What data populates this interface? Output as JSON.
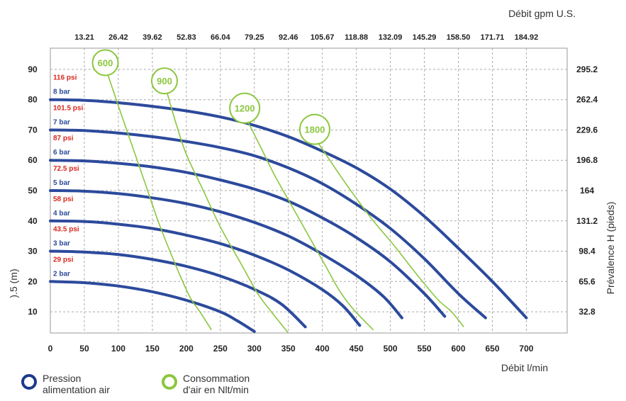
{
  "chart_data": {
    "type": "line",
    "top_axis_title": "Débit gpm U.S.",
    "x_label": "Débit l/min",
    "y_left_label": ").5 (m)",
    "y_right_label": "Prévalence H (pieds)",
    "x_ticks": [
      "0",
      "50",
      "100",
      "150",
      "200",
      "250",
      "300",
      "350",
      "400",
      "450",
      "500",
      "550",
      "600",
      "650",
      "700"
    ],
    "x_top_ticks": [
      "13.21",
      "26.42",
      "39.62",
      "52.83",
      "66.04",
      "79.25",
      "92.46",
      "105.67",
      "118.88",
      "132.09",
      "145.29",
      "158.50",
      "171.71",
      "184.92"
    ],
    "y_left_ticks": [
      "10",
      "20",
      "30",
      "40",
      "50",
      "60",
      "70",
      "80",
      "90"
    ],
    "y_right_ticks": [
      "32.8",
      "65.6",
      "98.4",
      "131.2",
      "164",
      "196.8",
      "229.6",
      "262.4",
      "295.2"
    ],
    "xlim": [
      0,
      760
    ],
    "ylim": [
      3,
      97
    ],
    "grid": true,
    "series": [
      {
        "name": "8 bar",
        "psi": "116 psi",
        "x": [
          0,
          50,
          100,
          150,
          200,
          250,
          300,
          350,
          400,
          450,
          500,
          550,
          600,
          650,
          700
        ],
        "y": [
          80,
          79.8,
          79,
          77.8,
          76.3,
          74.3,
          71.5,
          67.8,
          63,
          57.5,
          50.5,
          41.5,
          31,
          20,
          8
        ]
      },
      {
        "name": "7 bar",
        "psi": "101.5 psi",
        "x": [
          0,
          50,
          100,
          150,
          200,
          250,
          300,
          350,
          400,
          450,
          500,
          550,
          600,
          640
        ],
        "y": [
          70,
          69.8,
          69,
          67.8,
          66.2,
          64.2,
          61.5,
          57.5,
          52.3,
          45.5,
          37.5,
          27.5,
          16,
          8
        ]
      },
      {
        "name": "6 bar",
        "psi": "87 psi",
        "x": [
          0,
          50,
          100,
          150,
          200,
          250,
          300,
          350,
          400,
          450,
          500,
          550,
          580
        ],
        "y": [
          60,
          59.8,
          59,
          57.8,
          56,
          53.5,
          50.5,
          46.5,
          41,
          34.5,
          26.5,
          16,
          8.5
        ]
      },
      {
        "name": "5 bar",
        "psi": "72.5 psi",
        "x": [
          0,
          50,
          100,
          150,
          200,
          250,
          300,
          350,
          400,
          450,
          490,
          517
        ],
        "y": [
          50,
          49.8,
          49,
          47.6,
          45.7,
          43,
          39.5,
          35,
          29,
          22,
          15,
          8
        ]
      },
      {
        "name": "4 bar",
        "psi": "58 psi",
        "x": [
          0,
          50,
          100,
          150,
          200,
          250,
          300,
          350,
          400,
          430,
          455
        ],
        "y": [
          40,
          39.8,
          38.9,
          37.5,
          35.3,
          32.5,
          28.7,
          23.8,
          17.3,
          12,
          5.5
        ]
      },
      {
        "name": "3 bar",
        "psi": "43.5 psi",
        "x": [
          0,
          50,
          100,
          150,
          200,
          250,
          300,
          340,
          375
        ],
        "y": [
          30,
          29.7,
          28.9,
          27.3,
          25,
          21.8,
          17.4,
          12.5,
          5
        ]
      },
      {
        "name": "2 bar",
        "psi": "29 psi",
        "x": [
          0,
          50,
          100,
          150,
          200,
          250,
          275,
          300
        ],
        "y": [
          20,
          19.6,
          18.5,
          16.6,
          13.8,
          10,
          7,
          3.5
        ]
      }
    ],
    "air_consumption": [
      {
        "label": "600",
        "x": [
          85,
          100,
          120,
          140,
          160,
          185,
          205,
          220,
          237
        ],
        "y": [
          88,
          78,
          65,
          52,
          39,
          25,
          15,
          10,
          4
        ]
      },
      {
        "label": "900",
        "x": [
          172,
          185,
          200,
          225,
          250,
          280,
          305,
          325,
          350
        ],
        "y": [
          82,
          72,
          62,
          50,
          38,
          26,
          16,
          10,
          3
        ]
      },
      {
        "label": "1200",
        "x": [
          290,
          310,
          330,
          355,
          380,
          405,
          425,
          445,
          475
        ],
        "y": [
          73,
          64,
          55,
          45,
          35,
          25,
          17,
          11,
          4
        ]
      },
      {
        "label": "1800",
        "x": [
          393,
          420,
          445,
          475,
          505,
          540,
          570,
          590,
          608
        ],
        "y": [
          66,
          57,
          49,
          40,
          32,
          22,
          14,
          10,
          5
        ]
      }
    ],
    "legend": [
      {
        "label": "Pression alimentation air",
        "color": "#1a3a8c"
      },
      {
        "label": "Consommation d'air en Nlt/min",
        "color": "#8cc63f"
      }
    ],
    "colors": {
      "pressure": "#2c4a9c",
      "air": "#8cc63f",
      "psi_label": "#d9261c",
      "bar_label": "#2c4a9c"
    }
  }
}
